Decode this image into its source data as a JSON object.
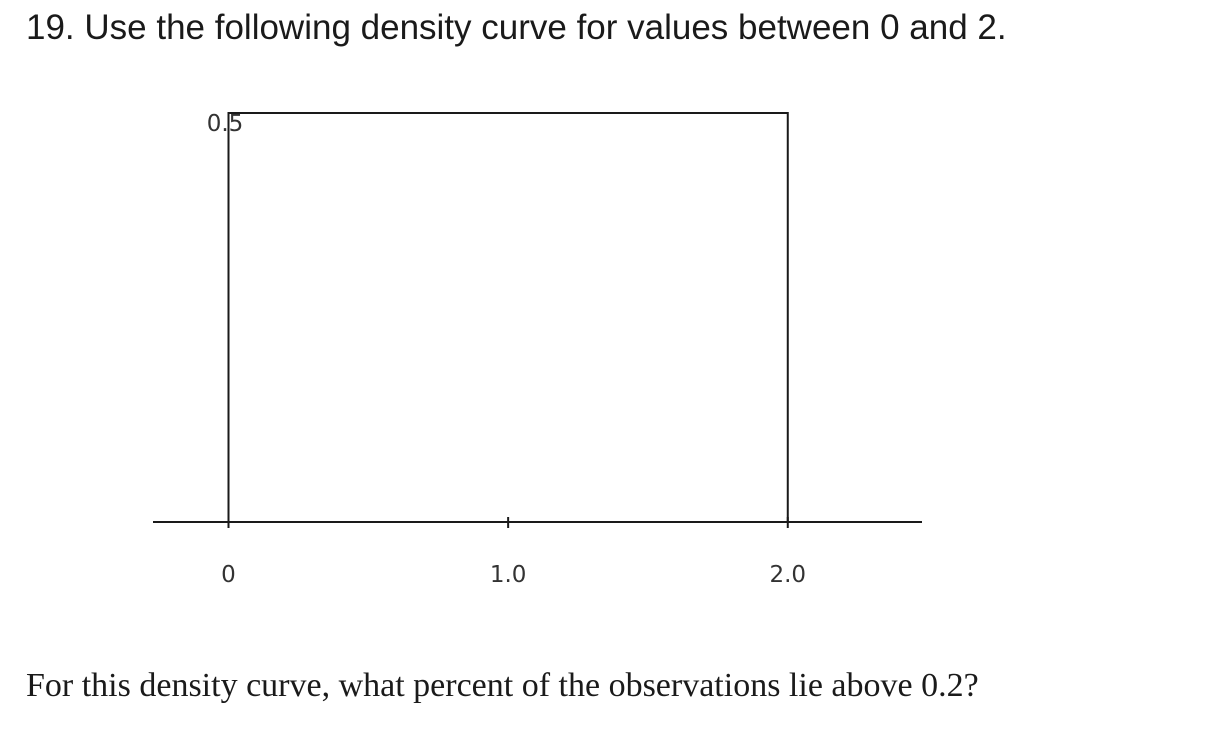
{
  "question": {
    "title": "19. Use the following density curve for values between 0 and 2.",
    "prompt": "For this density curve, what percent of the observations lie above 0.2?"
  },
  "chart_data": {
    "type": "area",
    "x": [
      0,
      2
    ],
    "y": [
      0.5,
      0.5
    ],
    "xlim": [
      -0.27,
      2.48
    ],
    "ylim": [
      0,
      0.5
    ],
    "x_ticks": [
      {
        "value": 0,
        "label": "0"
      },
      {
        "value": 1,
        "label": "1.0"
      },
      {
        "value": 2,
        "label": "2.0"
      }
    ],
    "y_ticks": [
      {
        "value": 0.5,
        "label": "0.5"
      }
    ],
    "grid": false,
    "line_color": "#1a1a1a"
  }
}
